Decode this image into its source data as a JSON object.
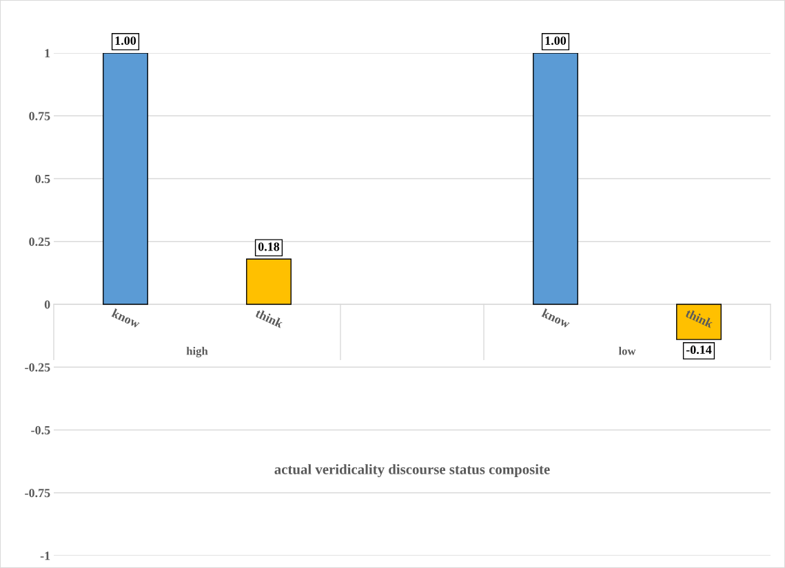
{
  "chart_data": {
    "type": "bar",
    "xlabel": "actual veridicality discourse status composite",
    "categories": [
      "know",
      "think",
      null,
      "know",
      "think"
    ],
    "values": [
      1.0,
      0.18,
      null,
      1.0,
      -0.14
    ],
    "colors": [
      "#5b9bd5",
      "#ffc000",
      "#ffffff",
      "#5b9bd5",
      "#ffc000"
    ],
    "value_labels": [
      "1.00",
      "0.18",
      null,
      "1.00",
      "-0.14"
    ],
    "annotations": [
      "high",
      "low"
    ],
    "ylim": [
      -1,
      1
    ],
    "yticks": [
      -1,
      -0.75,
      -0.5,
      -0.25,
      0,
      0.25,
      0.5,
      0.75,
      1
    ],
    "grid": "y"
  }
}
